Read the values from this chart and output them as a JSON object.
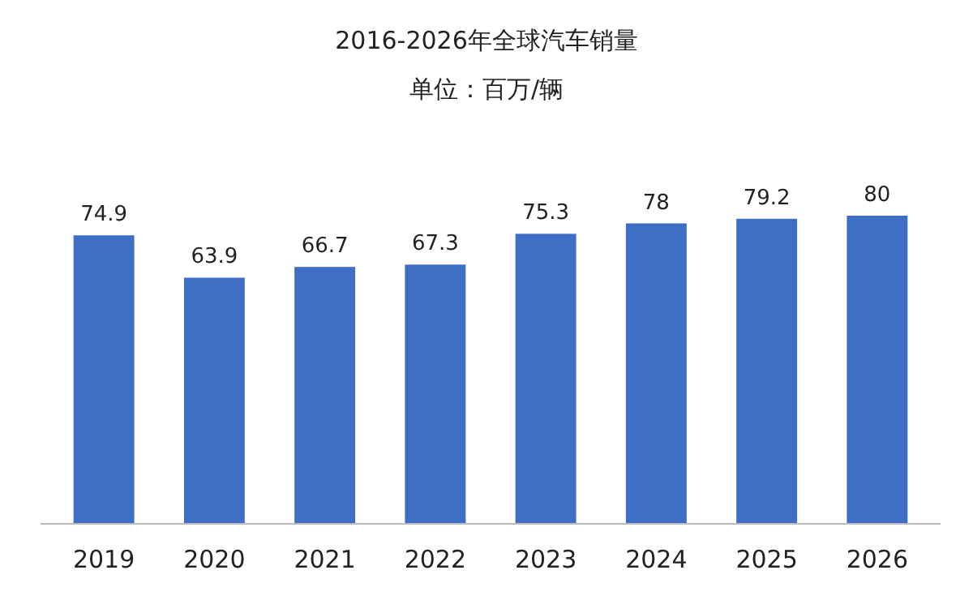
{
  "chart_data": {
    "type": "bar",
    "title": "2016-2026年全球汽车销量",
    "subtitle": "单位：百万/辆",
    "categories": [
      "2019",
      "2020",
      "2021",
      "2022",
      "2023",
      "2024",
      "2025",
      "2026"
    ],
    "values": [
      74.9,
      63.9,
      66.7,
      67.3,
      75.3,
      78,
      79.2,
      80
    ],
    "color": "#3f6fc4",
    "data_labels": true
  }
}
